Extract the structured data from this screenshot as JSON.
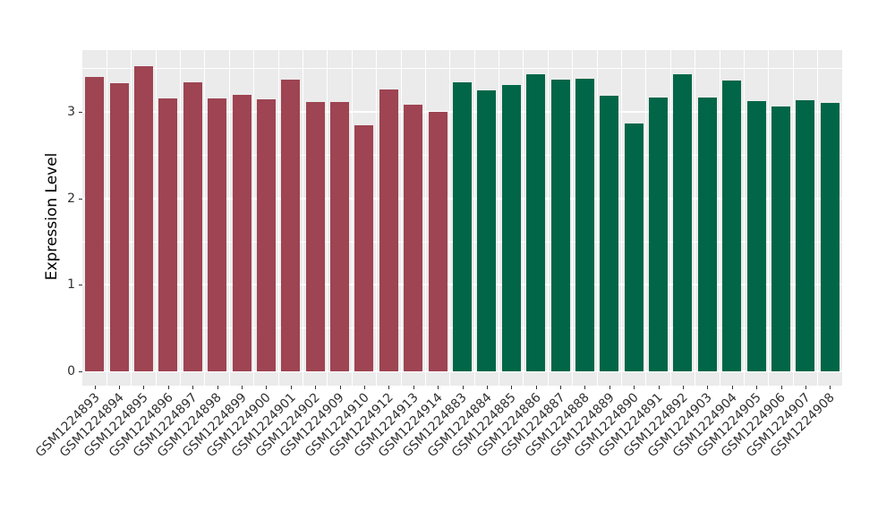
{
  "figure": {
    "background_color": "#FFFFFF",
    "panel_background_color": "#EBEBEB",
    "gridline_color": "#FFFFFF",
    "tick_color": "#333333",
    "axis_text_color": "#303030",
    "axis_title_color": "#000000"
  },
  "chart_data": {
    "type": "bar",
    "title": "",
    "xlabel": "",
    "ylabel": "Expression Level",
    "ylim": [
      0,
      3.72
    ],
    "yticks": [
      0,
      1,
      2,
      3
    ],
    "y_minor_ticks": [
      0.5,
      1.5,
      2.5,
      3.5
    ],
    "grid": true,
    "legend": false,
    "x_label_angle": 45,
    "group_sizes": [
      15,
      16
    ],
    "group_colors": [
      "#9E4452",
      "#006647"
    ],
    "categories": [
      "GSM1224893",
      "GSM1224894",
      "GSM1224895",
      "GSM1224896",
      "GSM1224897",
      "GSM1224898",
      "GSM1224899",
      "GSM1224900",
      "GSM1224901",
      "GSM1224902",
      "GSM1224909",
      "GSM1224910",
      "GSM1224912",
      "GSM1224913",
      "GSM1224914",
      "GSM1224883",
      "GSM1224884",
      "GSM1224885",
      "GSM1224886",
      "GSM1224887",
      "GSM1224888",
      "GSM1224889",
      "GSM1224890",
      "GSM1224891",
      "GSM1224892",
      "GSM1224903",
      "GSM1224904",
      "GSM1224905",
      "GSM1224906",
      "GSM1224907",
      "GSM1224908"
    ],
    "values": [
      3.41,
      3.33,
      3.53,
      3.16,
      3.34,
      3.16,
      3.2,
      3.15,
      3.37,
      3.12,
      3.12,
      2.85,
      3.26,
      3.08,
      3.0,
      3.34,
      3.25,
      3.31,
      3.44,
      3.37,
      3.38,
      3.19,
      2.87,
      3.17,
      3.44,
      3.17,
      3.36,
      3.13,
      3.06,
      3.14,
      3.11
    ],
    "colors": [
      "#9E4452",
      "#9E4452",
      "#9E4452",
      "#9E4452",
      "#9E4452",
      "#9E4452",
      "#9E4452",
      "#9E4452",
      "#9E4452",
      "#9E4452",
      "#9E4452",
      "#9E4452",
      "#9E4452",
      "#9E4452",
      "#9E4452",
      "#006647",
      "#006647",
      "#006647",
      "#006647",
      "#006647",
      "#006647",
      "#006647",
      "#006647",
      "#006647",
      "#006647",
      "#006647",
      "#006647",
      "#006647",
      "#006647",
      "#006647",
      "#006647"
    ]
  }
}
